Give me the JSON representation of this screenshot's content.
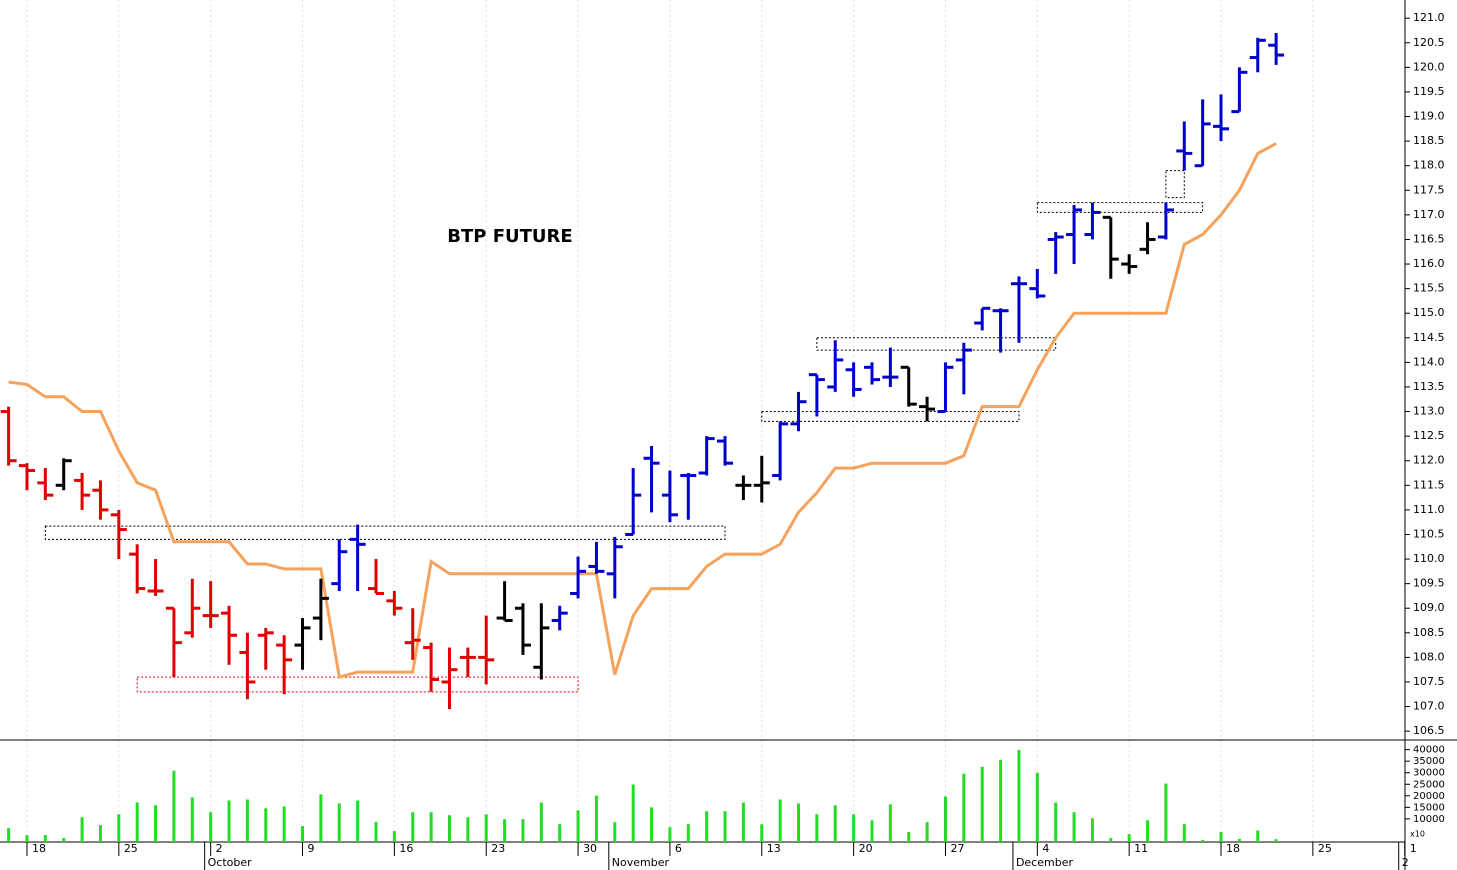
{
  "chart_data": {
    "type": "ohlc",
    "title": "BTP FUTURE",
    "categories": [
      null,
      "18",
      null,
      null,
      null,
      null,
      "25",
      null,
      null,
      null,
      null,
      "2",
      null,
      null,
      null,
      null,
      "9",
      null,
      null,
      null,
      null,
      "16",
      null,
      null,
      null,
      null,
      "23",
      null,
      null,
      null,
      null,
      "30",
      null,
      null,
      null,
      null,
      "6",
      null,
      null,
      null,
      null,
      "13",
      null,
      null,
      null,
      null,
      "20",
      null,
      null,
      null,
      null,
      "27",
      null,
      null,
      null,
      null,
      "4",
      null,
      null,
      null,
      null,
      "11",
      null,
      null,
      null,
      null,
      "18",
      null,
      null,
      null,
      null,
      "25",
      null,
      null,
      null,
      null,
      "1"
    ],
    "months": [
      null,
      null,
      null,
      null,
      null,
      null,
      null,
      null,
      null,
      null,
      null,
      "October",
      null,
      null,
      null,
      null,
      null,
      null,
      null,
      null,
      null,
      null,
      null,
      null,
      null,
      null,
      null,
      null,
      null,
      null,
      null,
      null,
      null,
      "November",
      null,
      null,
      null,
      null,
      null,
      null,
      null,
      null,
      null,
      null,
      null,
      null,
      null,
      null,
      null,
      null,
      null,
      null,
      null,
      null,
      null,
      "December",
      null,
      null,
      null,
      null,
      null,
      null,
      null,
      null,
      null,
      null,
      null,
      null,
      null,
      null,
      null,
      null,
      null,
      null,
      null,
      null,
      "2"
    ],
    "open": [
      113.0,
      111.9,
      111.55,
      111.5,
      111.6,
      111.4,
      110.9,
      110.1,
      109.35,
      109.0,
      108.5,
      108.85,
      108.9,
      108.1,
      108.45,
      108.25,
      108.25,
      108.8,
      109.5,
      110.4,
      109.4,
      109.15,
      108.3,
      108.2,
      107.5,
      108.0,
      108.0,
      108.8,
      109.0,
      107.8,
      108.75,
      109.3,
      109.85,
      109.7,
      110.5,
      112.05,
      111.3,
      111.7,
      111.75,
      112.4,
      111.5,
      111.5,
      111.7,
      112.75,
      113.75,
      113.5,
      113.85,
      113.9,
      113.7,
      113.9,
      113.1,
      113.0,
      114.05,
      114.8,
      115.05,
      115.6,
      115.5,
      116.5,
      116.6,
      116.6,
      116.95,
      116.0,
      116.3,
      116.55,
      118.3,
      118.0,
      118.8,
      119.1,
      120.2,
      120.45,
      null,
      null,
      null,
      null,
      null,
      null,
      null
    ],
    "high": [
      113.1,
      111.95,
      111.85,
      112.05,
      111.75,
      111.6,
      111.0,
      110.3,
      110.0,
      109.0,
      109.6,
      109.55,
      109.05,
      108.5,
      108.6,
      108.45,
      108.8,
      109.6,
      110.4,
      110.7,
      110.0,
      109.35,
      109.0,
      108.3,
      108.2,
      108.2,
      108.85,
      109.55,
      109.1,
      109.1,
      109.05,
      110.05,
      110.35,
      110.45,
      111.85,
      112.3,
      111.8,
      111.75,
      112.5,
      112.5,
      111.7,
      112.1,
      112.8,
      113.4,
      113.75,
      114.45,
      114.0,
      114.0,
      114.3,
      113.9,
      113.3,
      114.0,
      114.4,
      115.1,
      115.1,
      115.75,
      115.9,
      116.65,
      117.2,
      117.25,
      116.95,
      116.2,
      116.85,
      117.25,
      118.9,
      119.35,
      119.45,
      120.0,
      120.6,
      120.7,
      null,
      null,
      null,
      null,
      null,
      null,
      null
    ],
    "low": [
      111.9,
      111.4,
      111.2,
      111.4,
      111.0,
      110.8,
      110.0,
      109.3,
      109.25,
      107.6,
      108.4,
      108.6,
      107.85,
      107.15,
      107.75,
      107.25,
      107.75,
      108.35,
      109.35,
      109.35,
      109.3,
      108.85,
      107.95,
      107.3,
      106.95,
      107.6,
      107.45,
      108.75,
      108.05,
      107.55,
      108.55,
      109.2,
      109.7,
      109.2,
      110.5,
      110.95,
      110.75,
      110.8,
      111.7,
      111.9,
      111.2,
      111.15,
      111.6,
      112.6,
      112.9,
      113.4,
      113.3,
      113.55,
      113.5,
      113.1,
      112.8,
      113.0,
      113.35,
      114.65,
      114.2,
      114.4,
      115.3,
      115.8,
      116.0,
      116.5,
      115.7,
      115.8,
      116.2,
      116.5,
      117.9,
      118.0,
      118.5,
      119.1,
      119.9,
      120.05,
      null,
      null,
      null,
      null,
      null,
      null,
      null
    ],
    "close": [
      112.0,
      111.8,
      111.3,
      112.0,
      111.3,
      111.0,
      110.6,
      109.4,
      109.35,
      108.3,
      109.0,
      108.85,
      108.45,
      107.5,
      108.5,
      107.95,
      108.6,
      109.2,
      110.15,
      110.3,
      109.3,
      109.0,
      108.35,
      107.55,
      107.75,
      108.0,
      107.95,
      108.75,
      108.25,
      108.6,
      108.9,
      109.75,
      109.75,
      110.25,
      111.3,
      111.95,
      110.9,
      111.7,
      112.45,
      111.95,
      111.5,
      111.55,
      112.75,
      113.2,
      113.65,
      114.05,
      113.45,
      113.65,
      113.7,
      113.15,
      113.05,
      113.9,
      114.25,
      115.1,
      115.05,
      115.6,
      115.35,
      116.55,
      117.1,
      117.05,
      116.1,
      115.95,
      116.5,
      117.1,
      118.25,
      118.85,
      118.75,
      119.9,
      120.55,
      120.25,
      null,
      null,
      null,
      null,
      null,
      null,
      null
    ],
    "bar_colors": [
      "#e00000",
      "#e00000",
      "#e00000",
      "#000000",
      "#e00000",
      "#e00000",
      "#e00000",
      "#e00000",
      "#e00000",
      "#e00000",
      "#e00000",
      "#e00000",
      "#e00000",
      "#e00000",
      "#e00000",
      "#e00000",
      "#000000",
      "#000000",
      "#0000cc",
      "#0000cc",
      "#e00000",
      "#e00000",
      "#e00000",
      "#e00000",
      "#e00000",
      "#e00000",
      "#e00000",
      "#000000",
      "#000000",
      "#000000",
      "#0000cc",
      "#0000cc",
      "#0000cc",
      "#0000cc",
      "#0000cc",
      "#0000cc",
      "#0000cc",
      "#0000cc",
      "#0000cc",
      "#0000cc",
      "#000000",
      "#000000",
      "#0000cc",
      "#0000cc",
      "#0000cc",
      "#0000cc",
      "#0000cc",
      "#0000cc",
      "#0000cc",
      "#000000",
      "#000000",
      "#0000cc",
      "#0000cc",
      "#0000cc",
      "#0000cc",
      "#0000cc",
      "#0000cc",
      "#0000cc",
      "#0000cc",
      "#0000cc",
      "#000000",
      "#000000",
      "#000000",
      "#0000cc",
      "#0000cc",
      "#0000cc",
      "#0000cc",
      "#0000cc",
      "#0000cc",
      "#0000cc",
      null,
      null,
      null,
      null,
      null,
      null,
      null
    ],
    "stop": {
      "color": "#f5a25d",
      "values": [
        113.6,
        113.55,
        113.3,
        113.3,
        113.0,
        113.0,
        112.2,
        111.55,
        111.4,
        110.35,
        110.35,
        110.35,
        110.35,
        109.9,
        109.9,
        109.8,
        109.8,
        109.8,
        107.6,
        107.7,
        107.7,
        107.7,
        107.7,
        109.95,
        109.7,
        109.7,
        109.7,
        109.7,
        109.7,
        109.7,
        109.7,
        109.7,
        109.7,
        107.65,
        108.85,
        109.4,
        109.4,
        109.4,
        109.85,
        110.1,
        110.1,
        110.1,
        110.3,
        110.95,
        111.35,
        111.85,
        111.85,
        111.95,
        111.95,
        111.95,
        111.95,
        111.95,
        112.1,
        113.1,
        113.1,
        113.1,
        113.85,
        114.5,
        115.0,
        115.0,
        115.0,
        115.0,
        115.0,
        115.0,
        116.4,
        116.6,
        117.0,
        117.5,
        118.25,
        118.45,
        null,
        null,
        null,
        null,
        null,
        null,
        null
      ]
    },
    "volume": {
      "color": "#22dd22",
      "note": "x10",
      "ylim": [
        0,
        42000
      ],
      "yticks": [
        10000,
        15000,
        20000,
        25000,
        30000,
        35000,
        40000
      ],
      "values": [
        6000,
        3000,
        3000,
        1700,
        10700,
        7300,
        12000,
        17100,
        15900,
        30900,
        19300,
        12900,
        18000,
        18400,
        14600,
        15400,
        6900,
        20600,
        16700,
        18000,
        8600,
        4700,
        12900,
        12900,
        11600,
        10700,
        12000,
        9900,
        9900,
        17100,
        7700,
        13700,
        20100,
        8600,
        24900,
        15000,
        6400,
        7700,
        13300,
        13300,
        17100,
        7700,
        18400,
        16700,
        12000,
        15900,
        12000,
        9400,
        16300,
        4300,
        8600,
        19700,
        29600,
        32600,
        35600,
        39900,
        30000,
        17100,
        12900,
        10300,
        1700,
        3400,
        9400,
        25300,
        7700,
        900,
        4300,
        1300,
        5000,
        1200,
        null,
        null,
        null,
        null,
        null,
        null,
        null
      ]
    },
    "ylim": [
      106.32,
      121.37
    ],
    "yticks": [
      106.5,
      {
        "value": 107,
        "label": "107.0"
      },
      107.5,
      {
        "value": 108,
        "label": "108.0"
      },
      108.5,
      {
        "value": 109,
        "label": "109.0"
      },
      109.5,
      {
        "value": 110,
        "label": "110.0"
      },
      110.5,
      {
        "value": 111,
        "label": "111.0"
      },
      111.5,
      {
        "value": 112,
        "label": "112.0"
      },
      112.5,
      {
        "value": 113,
        "label": "113.0"
      },
      113.5,
      {
        "value": 114,
        "label": "114.0"
      },
      114.5,
      {
        "value": 115,
        "label": "115.0"
      },
      115.5,
      {
        "value": 116,
        "label": "116.0"
      },
      116.5,
      {
        "value": 117,
        "label": "117.0"
      },
      117.5,
      {
        "value": 118,
        "label": "118.0"
      },
      118.5,
      {
        "value": 119,
        "label": "119.0"
      },
      119.5,
      {
        "value": 120,
        "label": "120.0"
      },
      120.5,
      {
        "value": 121,
        "label": "121.0"
      }
    ],
    "zones": [
      {
        "x0": 2,
        "x1": 39,
        "y0": 110.4,
        "y1": 110.67,
        "color": "#000000"
      },
      {
        "x0": 7,
        "x1": 31,
        "y0": 107.3,
        "y1": 107.6,
        "color": "#e00000"
      },
      {
        "x0": 44,
        "x1": 57,
        "y0": 114.25,
        "y1": 114.5,
        "color": "#000000"
      },
      {
        "x0": 41,
        "x1": 55,
        "y0": 112.8,
        "y1": 113.0,
        "color": "#000000"
      },
      {
        "x0": 56,
        "x1": 65,
        "y0": 117.05,
        "y1": 117.25,
        "color": "#000000"
      },
      {
        "x0": 63,
        "x1": 64,
        "y0": 117.35,
        "y1": 117.9,
        "color": "#000000"
      }
    ],
    "grid": true
  }
}
